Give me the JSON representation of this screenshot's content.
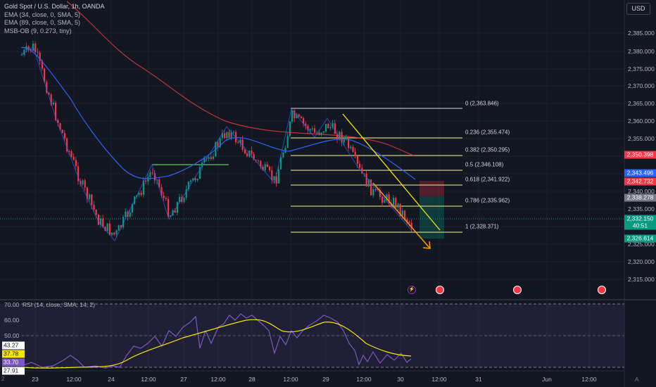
{
  "symbol": {
    "title": "Gold Spot / U.S. Dollar, 1h, OANDA"
  },
  "indicators": [
    "EMA (34, close, 0, SMA, 5)",
    "EMA (89, close, 0, SMA, 5)",
    "MSB-OB (9, 0.273, tiny)"
  ],
  "currency_button": "USD",
  "price_axis": [
    "2,385.000",
    "2,380.000",
    "2,375.000",
    "2,370.000",
    "2,365.000",
    "2,360.000",
    "2,355.000",
    "2,340.000",
    "2,335.000",
    "2,325.000",
    "2,320.000",
    "2,315.000"
  ],
  "price_badges": [
    {
      "text": "2,350.398",
      "color": "#f23645"
    },
    {
      "text": "2,343.496",
      "color": "#2962ff"
    },
    {
      "text": "2,342.732",
      "color": "#f23645"
    },
    {
      "text": "2,338.278",
      "color": "#787b86"
    },
    {
      "text": "2,332.150",
      "color": "#089981"
    },
    {
      "text": "40:51",
      "color": "#089981"
    },
    {
      "text": "2,326.614",
      "color": "#089981"
    }
  ],
  "fib_levels": [
    {
      "label": "0 (2,363.846)"
    },
    {
      "label": "0.236 (2,355.474)"
    },
    {
      "label": "0.382 (2,350.295)"
    },
    {
      "label": "0.5 (2,346.108)"
    },
    {
      "label": "0.618 (2,341.922)"
    },
    {
      "label": "0.786 (2,335.962)"
    },
    {
      "label": "1 (2,328.371)"
    }
  ],
  "rsi": {
    "legend": "RSI (14, close, SMA, 14, 2)",
    "axis": [
      "70.00",
      "60.00",
      "50.00"
    ],
    "badges": [
      {
        "text": "43.27",
        "bg": "#ffffff",
        "fg": "#131722"
      },
      {
        "text": "37.78",
        "bg": "#f7e600",
        "fg": "#131722"
      },
      {
        "text": "33.70",
        "bg": "#7e57c2",
        "fg": "#ffffff"
      },
      {
        "text": "27.91",
        "bg": "#ffffff",
        "fg": "#131722"
      }
    ]
  },
  "time_axis": [
    "23",
    "12:00",
    "24",
    "12:00",
    "27",
    "12:00",
    "28",
    "12:00",
    "29",
    "12:00",
    "30",
    "12:00",
    "31",
    "Jun",
    "12:00"
  ],
  "icons": {
    "tz": "2",
    "settings": "A"
  },
  "colors": {
    "up": "#089981",
    "down": "#f23645",
    "ema34": "#2962ff",
    "ema89": "#f23645",
    "trend": "#f7e600",
    "rsi": "#7e57c2"
  }
}
